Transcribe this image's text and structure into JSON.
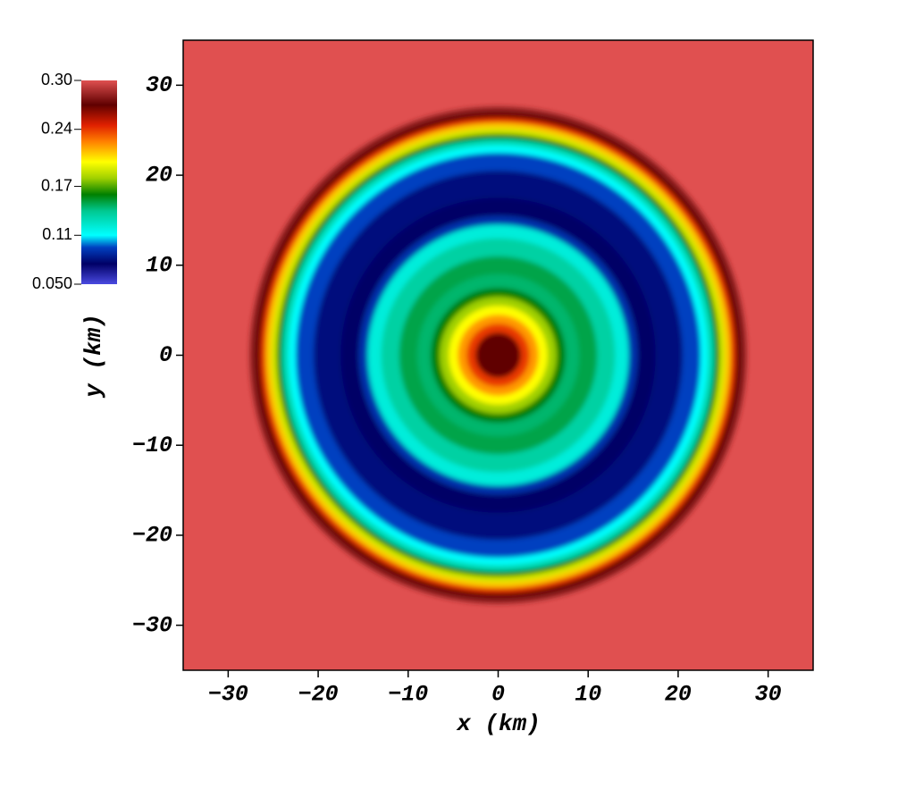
{
  "chart_data": {
    "type": "radial-field",
    "x_label": "x (km)",
    "y_label": "y (km)",
    "xlim": [
      -35,
      35
    ],
    "ylim": [
      -35,
      35
    ],
    "xticks": [
      {
        "value": -30,
        "label": "−30"
      },
      {
        "value": -20,
        "label": "−20"
      },
      {
        "value": -10,
        "label": "−10"
      },
      0,
      10,
      20,
      30
    ],
    "yticks": [
      {
        "value": -30,
        "label": "−30"
      },
      {
        "value": -20,
        "label": "−20"
      },
      {
        "value": -10,
        "label": "−10"
      },
      0,
      10,
      20,
      30
    ],
    "clim": [
      0.05,
      0.3
    ],
    "cticks": [
      {
        "value": 0.05,
        "label": "0.050"
      },
      0.11,
      0.17,
      0.24,
      {
        "value": 0.3,
        "label": "0.30"
      }
    ],
    "colormap": [
      {
        "value": 0.05,
        "color": "#4a4ae0"
      },
      {
        "value": 0.075,
        "color": "#000066"
      },
      {
        "value": 0.095,
        "color": "#0040c0"
      },
      {
        "value": 0.11,
        "color": "#00ffff"
      },
      {
        "value": 0.14,
        "color": "#00c890"
      },
      {
        "value": 0.16,
        "color": "#008000"
      },
      {
        "value": 0.18,
        "color": "#a0d000"
      },
      {
        "value": 0.2,
        "color": "#ffff00"
      },
      {
        "value": 0.225,
        "color": "#ff8000"
      },
      {
        "value": 0.245,
        "color": "#e02000"
      },
      {
        "value": 0.27,
        "color": "#600000"
      },
      {
        "value": 0.3,
        "color": "#e05050"
      }
    ],
    "background_value": 0.3,
    "radii": [
      27.6,
      27.0,
      26.4,
      25.8,
      25.2,
      24.6,
      24.0,
      23.3,
      22.5,
      20.5,
      17.5,
      15.5,
      14.5,
      13,
      11,
      9,
      7.5,
      6.5,
      5.5,
      4.5,
      3.5,
      2.5
    ],
    "values": [
      0.28,
      0.27,
      0.24,
      0.21,
      0.19,
      0.16,
      0.13,
      0.11,
      0.095,
      0.08,
      0.075,
      0.09,
      0.12,
      0.135,
      0.15,
      0.145,
      0.16,
      0.18,
      0.2,
      0.22,
      0.24,
      0.27
    ]
  }
}
